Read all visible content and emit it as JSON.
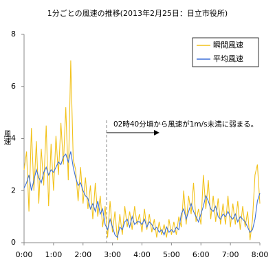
{
  "chart_data": {
    "type": "line",
    "title": "1分ごとの風速の推移(2013年2月25日：日立市役所)",
    "y_label": "風速",
    "annotation": "02時40分頃から風速が1m/s未満に弱まる。",
    "x": [
      0,
      5,
      10,
      15,
      20,
      25,
      30,
      35,
      40,
      45,
      50,
      55,
      60,
      65,
      70,
      75,
      80,
      85,
      90,
      95,
      100,
      105,
      110,
      115,
      120,
      125,
      130,
      135,
      140,
      145,
      150,
      155,
      160,
      165,
      170,
      175,
      180,
      185,
      190,
      195,
      200,
      205,
      210,
      215,
      220,
      225,
      230,
      235,
      240,
      245,
      250,
      255,
      260,
      265,
      270,
      275,
      280,
      285,
      290,
      295,
      300,
      305,
      310,
      315,
      320,
      325,
      330,
      335,
      340,
      345,
      350,
      355,
      360,
      365,
      370,
      375,
      380,
      385,
      390,
      395,
      400,
      405,
      410,
      415,
      420,
      425,
      430,
      435,
      440,
      445,
      450,
      455,
      460,
      465,
      470,
      475,
      480
    ],
    "series": [
      {
        "name": "瞬間風速",
        "color": "#f2c21b",
        "values": [
          2.8,
          3.5,
          1.2,
          4.4,
          2.0,
          3.9,
          1.5,
          3.6,
          2.2,
          4.5,
          1.4,
          3.8,
          2.0,
          4.1,
          2.6,
          4.6,
          3.0,
          5.2,
          2.4,
          7.0,
          3.2,
          2.8,
          1.6,
          2.9,
          1.5,
          2.5,
          1.3,
          2.2,
          0.9,
          2.3,
          1.0,
          1.8,
          0.6,
          1.4,
          0.2,
          1.6,
          0.4,
          1.2,
          0.1,
          1.1,
          0.3,
          1.4,
          0.6,
          1.2,
          0.5,
          1.4,
          0.7,
          1.1,
          0.4,
          1.3,
          0.5,
          1.1,
          0.4,
          0.9,
          0.2,
          0.8,
          0.3,
          0.7,
          0.2,
          0.9,
          0.3,
          0.8,
          0.3,
          1.0,
          0.6,
          2.0,
          0.7,
          1.8,
          1.1,
          2.3,
          0.8,
          1.3,
          0.7,
          2.6,
          1.3,
          2.4,
          0.9,
          1.8,
          0.8,
          1.7,
          0.7,
          1.5,
          0.7,
          1.8,
          0.6,
          1.5,
          0.7,
          1.6,
          0.5,
          1.4,
          0.6,
          1.2,
          0.1,
          0.9,
          2.6,
          3.0,
          1.5
        ]
      },
      {
        "name": "平均風速",
        "color": "#3b6fd8",
        "values": [
          2.1,
          2.3,
          2.6,
          2.0,
          2.4,
          2.8,
          2.5,
          2.3,
          2.7,
          2.9,
          2.6,
          2.8,
          2.7,
          2.9,
          3.1,
          3.0,
          3.3,
          3.4,
          3.1,
          3.5,
          2.9,
          2.5,
          2.2,
          2.3,
          2.0,
          1.8,
          1.7,
          1.3,
          1.5,
          1.2,
          1.6,
          1.1,
          1.3,
          0.7,
          0.5,
          0.9,
          0.6,
          0.3,
          0.2,
          0.6,
          0.5,
          0.8,
          0.9,
          0.6,
          1.0,
          0.7,
          0.8,
          0.8,
          0.7,
          0.9,
          0.6,
          0.8,
          0.7,
          0.5,
          0.6,
          0.4,
          0.5,
          0.3,
          0.6,
          0.4,
          0.5,
          0.4,
          0.6,
          0.5,
          1.1,
          1.3,
          0.9,
          1.2,
          1.5,
          1.2,
          1.0,
          0.8,
          1.1,
          1.4,
          1.8,
          1.6,
          1.3,
          1.2,
          1.4,
          1.0,
          0.9,
          1.1,
          1.0,
          1.2,
          1.0,
          0.9,
          1.1,
          0.8,
          1.0,
          0.9,
          0.8,
          0.6,
          0.4,
          0.5,
          0.9,
          1.6,
          1.9
        ]
      }
    ],
    "xlim": [
      0,
      480
    ],
    "xticks": [
      {
        "value": 0,
        "label": "0:00"
      },
      {
        "value": 60,
        "label": "1:00"
      },
      {
        "value": 120,
        "label": "2:00"
      },
      {
        "value": 180,
        "label": "3:00"
      },
      {
        "value": 240,
        "label": "4:00"
      },
      {
        "value": 300,
        "label": "5:00"
      },
      {
        "value": 360,
        "label": "6:00"
      },
      {
        "value": 420,
        "label": "7:00"
      },
      {
        "value": 480,
        "label": "8:00"
      }
    ],
    "ylim": [
      0,
      8
    ],
    "yticks": [
      0,
      2,
      4,
      6,
      8
    ],
    "legend": "top-right"
  }
}
